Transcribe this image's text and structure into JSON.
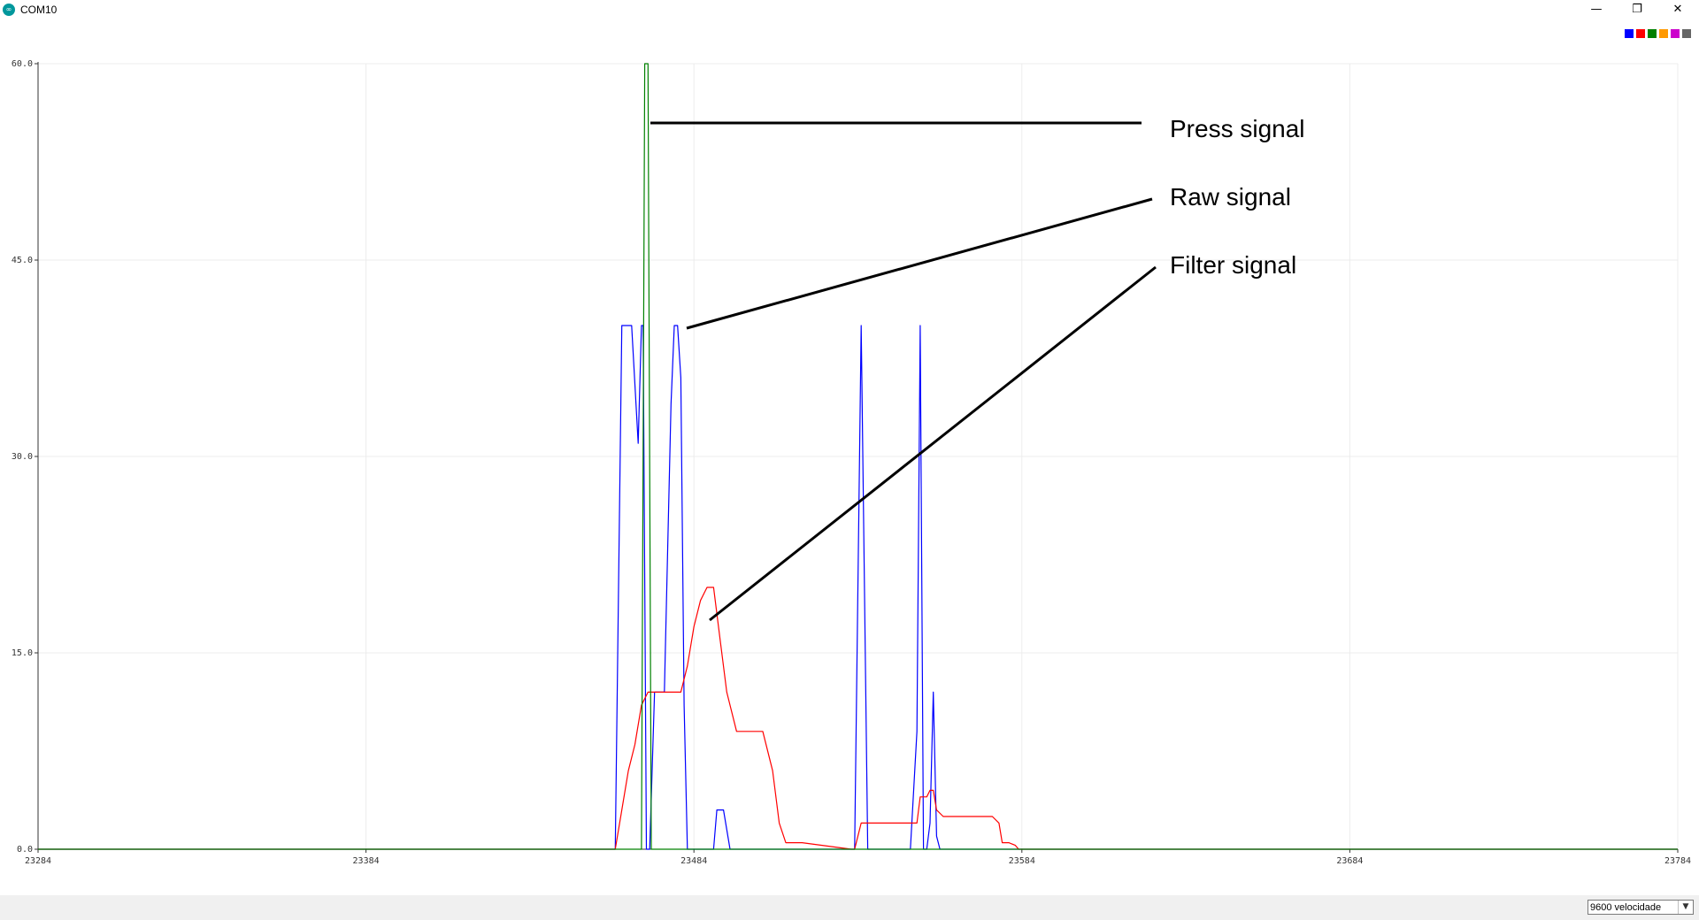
{
  "window": {
    "title": "COM10",
    "icon": "arduino-icon",
    "minimize_glyph": "—",
    "maximize_glyph": "❐",
    "close_glyph": "✕"
  },
  "legend": {
    "colors": [
      "#0000ff",
      "#ff0000",
      "#008000",
      "#ff9900",
      "#cc00cc",
      "#666666"
    ]
  },
  "bottom_bar": {
    "baud_value": "9600 velocidade",
    "dropdown_icon": "chevron-down-icon"
  },
  "annotations": [
    {
      "text": "Press signal",
      "target": "green series"
    },
    {
      "text": "Raw signal",
      "target": "blue series"
    },
    {
      "text": "Filter signal",
      "target": "red series"
    }
  ],
  "chart_data": {
    "type": "line",
    "title": "",
    "xlabel": "",
    "ylabel": "",
    "xlim": [
      23284,
      23784
    ],
    "ylim": [
      0,
      60
    ],
    "x_ticks": [
      "23284",
      "23384",
      "23484",
      "23584",
      "23684",
      "23784"
    ],
    "y_ticks": [
      "0.0",
      "15.0",
      "30.0",
      "45.0",
      "60.0"
    ],
    "grid": true,
    "legend_position": "top-right",
    "series": [
      {
        "color": "#0000ff",
        "x": [
          23284,
          23460,
          23462,
          23465,
          23467,
          23468,
          23468.5,
          23469.5,
          23470.5,
          23472,
          23475,
          23477,
          23478,
          23479,
          23480,
          23481,
          23482,
          23483,
          23484,
          23490,
          23491,
          23492,
          23493,
          23495,
          23533,
          23535,
          23537,
          23539,
          23550,
          23552,
          23553,
          23554,
          23555,
          23556,
          23557,
          23558,
          23559,
          23784
        ],
        "y": [
          0,
          0,
          40,
          40,
          31,
          40,
          40,
          0,
          0,
          12,
          12,
          34,
          40,
          40,
          36,
          11,
          0,
          0,
          0,
          0,
          3,
          3,
          3,
          0,
          0,
          40,
          0,
          0,
          0,
          9,
          40,
          0,
          0,
          2,
          12,
          1,
          0,
          0
        ]
      },
      {
        "color": "#ff0000",
        "x": [
          23284,
          23460,
          23462,
          23464,
          23466,
          23468,
          23470,
          23472,
          23475,
          23478,
          23480,
          23482,
          23484,
          23486,
          23488,
          23490,
          23492,
          23494,
          23497,
          23500,
          23502,
          23505,
          23508,
          23510,
          23512,
          23515,
          23517,
          23532,
          23533,
          23534,
          23535,
          23536,
          23540,
          23545,
          23550,
          23552,
          23553,
          23555,
          23556,
          23557,
          23558,
          23560,
          23565,
          23570,
          23575,
          23577,
          23578,
          23580,
          23582,
          23583,
          23784
        ],
        "y": [
          0,
          0,
          3,
          6,
          8,
          11,
          12,
          12,
          12,
          12,
          12,
          14,
          17,
          19,
          20,
          20,
          16,
          12,
          9,
          9,
          9,
          9,
          6,
          2,
          0.5,
          0.5,
          0.5,
          0,
          0,
          1,
          2,
          2,
          2,
          2,
          2,
          2,
          4,
          4,
          4.5,
          4.5,
          3,
          2.5,
          2.5,
          2.5,
          2.5,
          2,
          0.5,
          0.5,
          0.3,
          0,
          0
        ]
      },
      {
        "color": "#008000",
        "x": [
          23284,
          23468,
          23469,
          23470,
          23471,
          23472,
          23784
        ],
        "y": [
          0,
          0,
          60,
          60,
          0,
          0,
          0
        ]
      }
    ]
  }
}
